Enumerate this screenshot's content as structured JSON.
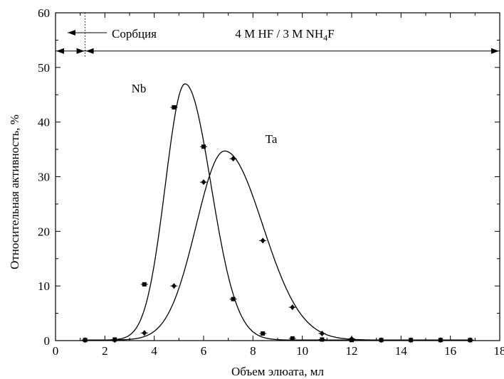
{
  "chart_data": {
    "type": "line",
    "xlabel": "Объем элюата, мл",
    "ylabel": "Относительная активность, %",
    "xlim": [
      0,
      18
    ],
    "ylim": [
      0,
      60
    ],
    "xticks": [
      0,
      2,
      4,
      6,
      8,
      10,
      12,
      14,
      16,
      18
    ],
    "yticks": [
      0,
      10,
      20,
      30,
      40,
      50,
      60
    ],
    "grid": false,
    "series": [
      {
        "name": "Nb",
        "marker": "square",
        "x": [
          1.2,
          2.4,
          3.6,
          4.8,
          6.0,
          7.2,
          8.4,
          9.6,
          10.8,
          12.0,
          13.2,
          14.4,
          15.6,
          16.8
        ],
        "y": [
          0.1,
          0.2,
          10.3,
          42.7,
          35.5,
          7.6,
          1.3,
          0.4,
          0.2,
          0.1,
          0.1,
          0.1,
          0.1,
          0.1
        ],
        "fit": {
          "peak_x": 5.25,
          "peak_y": 47.0,
          "sigma_left": 0.8,
          "sigma_right": 1.05
        }
      },
      {
        "name": "Ta",
        "marker": "diamond",
        "x": [
          1.2,
          2.4,
          3.6,
          4.8,
          6.0,
          7.2,
          8.4,
          9.6,
          10.8,
          12.0,
          13.2,
          14.4,
          15.6,
          16.8
        ],
        "y": [
          0.1,
          0.1,
          1.4,
          10.0,
          29.0,
          33.3,
          18.3,
          6.1,
          1.3,
          0.3,
          0.1,
          0.1,
          0.1,
          0.1
        ],
        "fit": {
          "peak_x": 6.85,
          "peak_y": 34.7,
          "sigma_left": 1.15,
          "sigma_right": 1.55
        }
      }
    ],
    "annotations": {
      "sorption_label": "Сорбция",
      "eluent_label_prefix": "4 M HF / 3 M NH",
      "eluent_label_sub": "4",
      "eluent_label_suffix": "F",
      "sorption_boundary_x": 1.2,
      "arrow_level_y": 53
    }
  }
}
